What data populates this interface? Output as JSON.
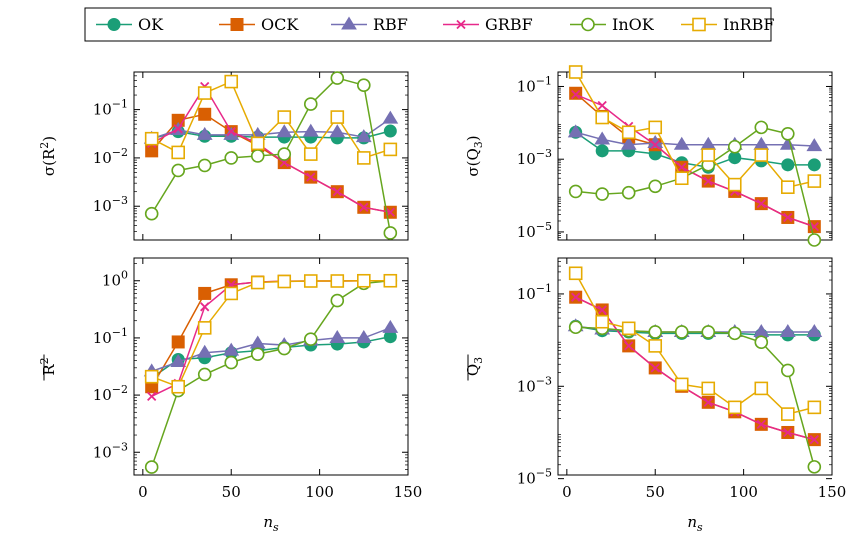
{
  "legend": {
    "placement": "top-center",
    "items": [
      {
        "name": "OK",
        "color": "#1b9e77",
        "marker": "circle-filled"
      },
      {
        "name": "OCK",
        "color": "#d95f02",
        "marker": "square-filled"
      },
      {
        "name": "RBF",
        "color": "#7570b3",
        "marker": "triangle-filled"
      },
      {
        "name": "GRBF",
        "color": "#e7298a",
        "marker": "x"
      },
      {
        "name": "InOK",
        "color": "#66a61e",
        "marker": "circle-open"
      },
      {
        "name": "InRBF",
        "color": "#e6ab02",
        "marker": "square-open"
      }
    ]
  },
  "chart_data": [
    {
      "type": "line",
      "xlabel": "",
      "ylabel": "σ(R²)",
      "ylabel_parts": {
        "main": "σ(R",
        "sup": "2",
        "close": ")"
      },
      "yscale": "log",
      "ylim": [
        0.0002,
        0.6
      ],
      "yticks": [
        {
          "base": "10",
          "exp": "−3",
          "value": 0.001
        },
        {
          "base": "10",
          "exp": "−2",
          "value": 0.01
        },
        {
          "base": "10",
          "exp": "−1",
          "value": 0.1
        }
      ],
      "xlim": [
        -5,
        150
      ],
      "xticks": [
        0,
        50,
        100,
        150
      ],
      "show_xtick_labels": false,
      "x": [
        5,
        20,
        35,
        50,
        65,
        80,
        95,
        110,
        125,
        140
      ],
      "series": [
        {
          "name": "OK",
          "values": [
            0.025,
            0.035,
            0.028,
            0.028,
            0.027,
            0.027,
            0.027,
            0.026,
            0.026,
            0.036
          ]
        },
        {
          "name": "OCK",
          "values": [
            0.014,
            0.06,
            0.08,
            0.035,
            0.018,
            0.008,
            0.004,
            0.002,
            0.00095,
            0.00075
          ]
        },
        {
          "name": "RBF",
          "values": [
            0.025,
            0.038,
            0.03,
            0.03,
            0.03,
            0.034,
            0.035,
            0.034,
            0.027,
            0.065
          ]
        },
        {
          "name": "GRBF",
          "values": [
            0.02,
            0.04,
            0.3,
            0.035,
            0.02,
            0.008,
            0.004,
            0.002,
            0.00095,
            0.00075
          ]
        },
        {
          "name": "InOK",
          "values": [
            0.0007,
            0.0055,
            0.007,
            0.01,
            0.011,
            0.012,
            0.13,
            0.45,
            0.32,
            0.00028
          ]
        },
        {
          "name": "InRBF",
          "values": [
            0.025,
            0.013,
            0.22,
            0.38,
            0.02,
            0.07,
            0.012,
            0.07,
            0.01,
            0.015
          ]
        }
      ]
    },
    {
      "type": "line",
      "xlabel": "",
      "ylabel": "σ(Q3)",
      "ylabel_parts": {
        "main": "σ(Q",
        "sub": "3",
        "close": ")"
      },
      "yscale": "log",
      "ylim": [
        6e-06,
        0.25
      ],
      "yticks": [
        {
          "base": "10",
          "exp": "−5",
          "value": 1e-05
        },
        {
          "base": "10",
          "exp": "−3",
          "value": 0.001
        },
        {
          "base": "10",
          "exp": "−1",
          "value": 0.1
        }
      ],
      "xlim": [
        -5,
        150
      ],
      "xticks": [
        0,
        50,
        100,
        150
      ],
      "show_xtick_labels": false,
      "x": [
        5,
        20,
        35,
        50,
        65,
        80,
        95,
        110,
        125,
        140
      ],
      "series": [
        {
          "name": "OK",
          "values": [
            0.0055,
            0.0017,
            0.0017,
            0.0014,
            0.0008,
            0.0006,
            0.0011,
            0.0009,
            0.0007,
            0.0007
          ]
        },
        {
          "name": "OCK",
          "values": [
            0.065,
            0.015,
            0.004,
            0.0025,
            0.0006,
            0.00025,
            0.00013,
            6e-05,
            2.5e-05,
            1.4e-05
          ]
        },
        {
          "name": "RBF",
          "values": [
            0.0055,
            0.0035,
            0.0025,
            0.0028,
            0.0025,
            0.0025,
            0.0025,
            0.0025,
            0.0025,
            0.0023
          ]
        },
        {
          "name": "GRBF",
          "values": [
            0.06,
            0.03,
            0.008,
            0.0025,
            0.0006,
            0.00025,
            0.00013,
            6e-05,
            2.5e-05,
            1.4e-05
          ]
        },
        {
          "name": "InOK",
          "values": [
            0.00013,
            0.00011,
            0.00012,
            0.00018,
            0.0003,
            0.0007,
            0.0022,
            0.0075,
            0.005,
            6e-06
          ]
        },
        {
          "name": "InRBF",
          "values": [
            0.25,
            0.014,
            0.0055,
            0.0075,
            0.0003,
            0.0013,
            0.0002,
            0.0013,
            0.00017,
            0.00025
          ]
        }
      ]
    },
    {
      "type": "line",
      "xlabel": "n_s",
      "ylabel": "mean R²",
      "ylabel_parts": {
        "main": "R",
        "sup": "2",
        "overline": true
      },
      "yscale": "log",
      "ylim": [
        0.0004,
        2.5
      ],
      "yticks": [
        {
          "base": "10",
          "exp": "−3",
          "value": 0.001
        },
        {
          "base": "10",
          "exp": "−2",
          "value": 0.01
        },
        {
          "base": "10",
          "exp": "−1",
          "value": 0.1
        },
        {
          "base": "10",
          "exp": "0",
          "value": 1
        }
      ],
      "xlim": [
        -5,
        150
      ],
      "xticks": [
        0,
        50,
        100,
        150
      ],
      "show_xtick_labels": true,
      "x": [
        5,
        20,
        35,
        50,
        65,
        80,
        95,
        110,
        125,
        140
      ],
      "series": [
        {
          "name": "OK",
          "values": [
            0.02,
            0.042,
            0.045,
            0.055,
            0.06,
            0.068,
            0.075,
            0.078,
            0.085,
            0.105
          ]
        },
        {
          "name": "OCK",
          "values": [
            0.014,
            0.085,
            0.6,
            0.85,
            0.95,
            0.98,
            0.99,
            0.99,
            1.0,
            1.0
          ]
        },
        {
          "name": "RBF",
          "values": [
            0.026,
            0.038,
            0.055,
            0.06,
            0.08,
            0.075,
            0.09,
            0.1,
            0.1,
            0.15
          ]
        },
        {
          "name": "GRBF",
          "values": [
            0.0095,
            0.016,
            0.35,
            0.85,
            0.95,
            0.98,
            0.99,
            0.99,
            1.0,
            1.0
          ]
        },
        {
          "name": "InOK",
          "values": [
            0.00055,
            0.012,
            0.023,
            0.037,
            0.052,
            0.065,
            0.095,
            0.45,
            0.9,
            1.0
          ]
        },
        {
          "name": "InRBF",
          "values": [
            0.021,
            0.014,
            0.15,
            0.6,
            0.93,
            0.97,
            0.99,
            0.99,
            1.0,
            1.0
          ]
        }
      ]
    },
    {
      "type": "line",
      "xlabel": "n_s",
      "ylabel": "mean Q3",
      "ylabel_parts": {
        "main": "Q",
        "sub": "3",
        "overline": true
      },
      "yscale": "log",
      "ylim": [
        1.2e-05,
        0.6
      ],
      "yticks": [
        {
          "base": "10",
          "exp": "−5",
          "value": 1e-05
        },
        {
          "base": "10",
          "exp": "−3",
          "value": 0.001
        },
        {
          "base": "10",
          "exp": "−1",
          "value": 0.1
        }
      ],
      "xlim": [
        -5,
        150
      ],
      "xticks": [
        0,
        50,
        100,
        150
      ],
      "show_xtick_labels": true,
      "x": [
        5,
        20,
        35,
        50,
        65,
        80,
        95,
        110,
        125,
        140
      ],
      "series": [
        {
          "name": "OK",
          "values": [
            0.02,
            0.016,
            0.015,
            0.014,
            0.014,
            0.014,
            0.014,
            0.013,
            0.013,
            0.013
          ]
        },
        {
          "name": "OCK",
          "values": [
            0.085,
            0.045,
            0.0075,
            0.0025,
            0.001,
            0.00045,
            0.00028,
            0.00015,
            0.0001,
            7e-05
          ]
        },
        {
          "name": "RBF",
          "values": [
            0.02,
            0.017,
            0.016,
            0.015,
            0.015,
            0.015,
            0.015,
            0.015,
            0.015,
            0.015
          ]
        },
        {
          "name": "GRBF",
          "values": [
            0.085,
            0.045,
            0.0075,
            0.0025,
            0.001,
            0.00045,
            0.00028,
            0.00015,
            0.0001,
            7e-05
          ]
        },
        {
          "name": "InOK",
          "values": [
            0.019,
            0.018,
            0.016,
            0.015,
            0.015,
            0.015,
            0.014,
            0.009,
            0.0022,
            1.8e-05
          ]
        },
        {
          "name": "InRBF",
          "values": [
            0.28,
            0.025,
            0.018,
            0.0075,
            0.0011,
            0.0009,
            0.00035,
            0.0009,
            0.00025,
            0.00035
          ]
        }
      ]
    }
  ]
}
